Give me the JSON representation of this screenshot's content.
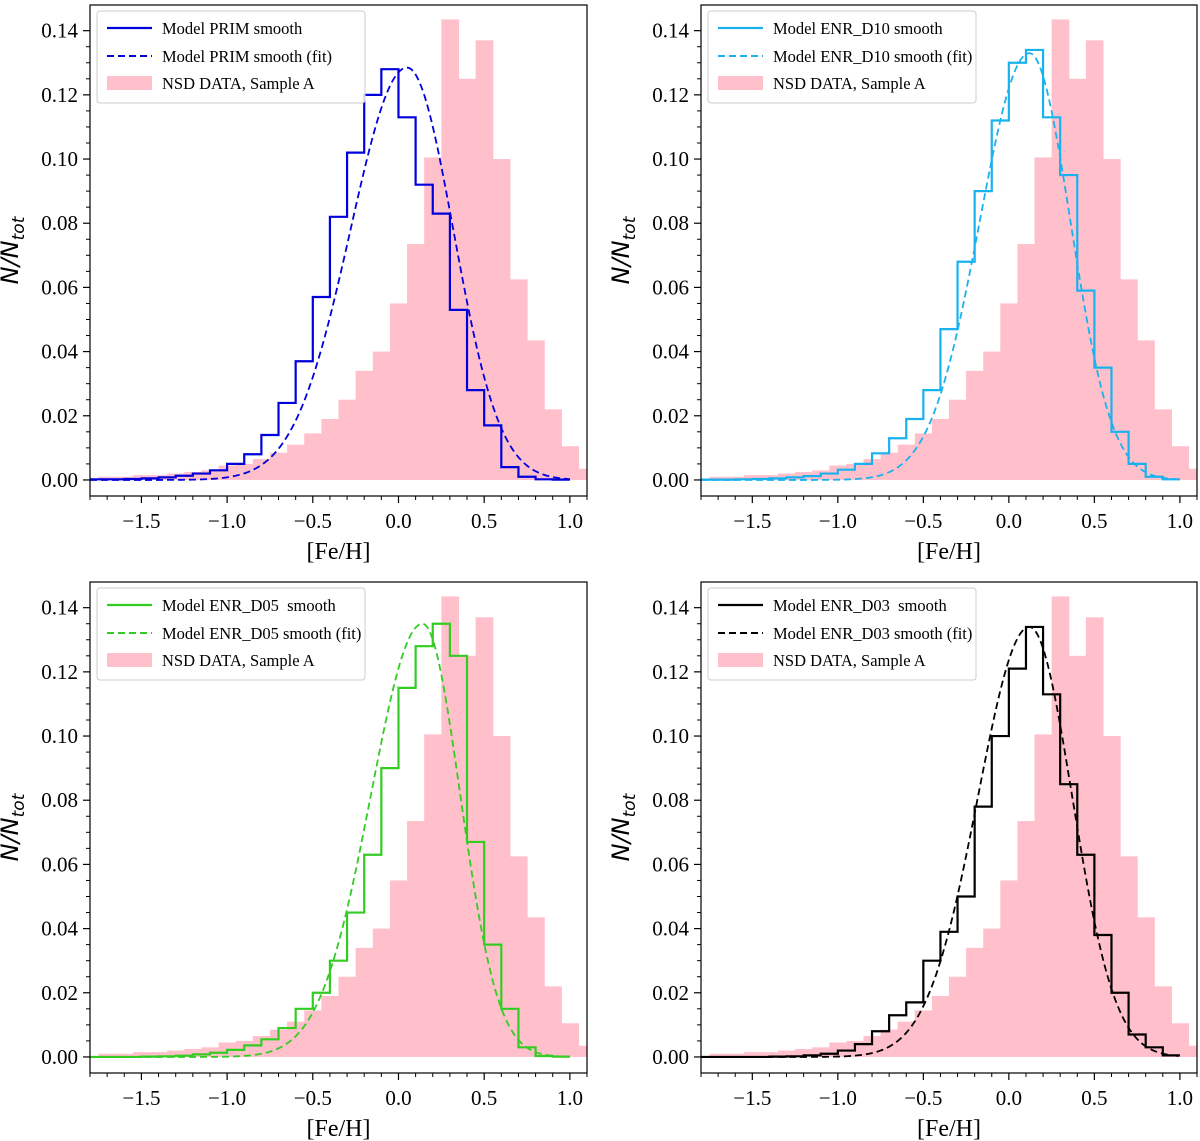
{
  "figure": {
    "xlabel": "[Fe/H]",
    "ylabel_main": "N/N",
    "ylabel_sub": "tot"
  },
  "chart_data": [
    {
      "type": "histogram",
      "title": "",
      "xlabel": "[Fe/H]",
      "ylabel": "N/N_tot",
      "xlim": [
        -1.8,
        1.1
      ],
      "ylim": [
        -0.005,
        0.148
      ],
      "xticks": [
        -1.5,
        -1.0,
        -0.5,
        0.0,
        0.5,
        1.0
      ],
      "xtick_labels": [
        "−1.5",
        "−1.0",
        "−0.5",
        "0.0",
        "0.5",
        "1.0"
      ],
      "yticks": [
        0.0,
        0.02,
        0.04,
        0.06,
        0.08,
        0.1,
        0.12,
        0.14
      ],
      "ytick_labels": [
        "0.00",
        "0.02",
        "0.04",
        "0.06",
        "0.08",
        "0.10",
        "0.12",
        "0.14"
      ],
      "color": "#0000dd",
      "legend": {
        "position": "top-left",
        "entries": [
          "Model PRIM smooth",
          "Model PRIM smooth (fit)",
          "NSD DATA, Sample A"
        ]
      },
      "data_hist": {
        "name": "NSD DATA, Sample A",
        "color": "#ffc0cb",
        "bin_width": 0.1,
        "bin_edges_start": -1.85,
        "values": [
          0.0,
          0.001,
          0.001,
          0.0015,
          0.0015,
          0.002,
          0.0025,
          0.003,
          0.0045,
          0.005,
          0.0065,
          0.0085,
          0.011,
          0.0145,
          0.019,
          0.025,
          0.034,
          0.04,
          0.055,
          0.0735,
          0.1005,
          0.1435,
          0.125,
          0.137,
          0.1,
          0.0625,
          0.0435,
          0.022,
          0.0105,
          0.0035
        ]
      },
      "model_hist": {
        "name": "Model PRIM smooth",
        "bin_width": 0.1,
        "bin_edges_start": -1.8,
        "values": [
          0.0002,
          0.0002,
          0.0003,
          0.0005,
          0.0008,
          0.0013,
          0.002,
          0.003,
          0.005,
          0.008,
          0.014,
          0.024,
          0.037,
          0.057,
          0.082,
          0.102,
          0.12,
          0.128,
          0.113,
          0.092,
          0.083,
          0.053,
          0.028,
          0.017,
          0.004,
          0.001,
          0.0002,
          0.0001
        ]
      },
      "fit_curve": {
        "name": "Model PRIM smooth (fit)",
        "type": "skew-gaussian",
        "amplitude": 0.1285,
        "mu": 0.05,
        "sigma_left": 0.33,
        "sigma_right": 0.27,
        "x_end": 1.0
      }
    },
    {
      "type": "histogram",
      "title": "",
      "xlabel": "[Fe/H]",
      "ylabel": "N/N_tot",
      "xlim": [
        -1.8,
        1.1
      ],
      "ylim": [
        -0.005,
        0.148
      ],
      "xticks": [
        -1.5,
        -1.0,
        -0.5,
        0.0,
        0.5,
        1.0
      ],
      "xtick_labels": [
        "−1.5",
        "−1.0",
        "−0.5",
        "0.0",
        "0.5",
        "1.0"
      ],
      "yticks": [
        0.0,
        0.02,
        0.04,
        0.06,
        0.08,
        0.1,
        0.12,
        0.14
      ],
      "ytick_labels": [
        "0.00",
        "0.02",
        "0.04",
        "0.06",
        "0.08",
        "0.10",
        "0.12",
        "0.14"
      ],
      "color": "#1ab2ee",
      "legend": {
        "position": "top-left",
        "entries": [
          "Model ENR_D10 smooth",
          "Model ENR_D10 smooth (fit)",
          "NSD DATA, Sample A"
        ]
      },
      "data_hist": {
        "name": "NSD DATA, Sample A",
        "color": "#ffc0cb",
        "bin_width": 0.1,
        "bin_edges_start": -1.85,
        "values": [
          0.0,
          0.001,
          0.001,
          0.0015,
          0.0015,
          0.002,
          0.0025,
          0.003,
          0.0045,
          0.005,
          0.0065,
          0.0085,
          0.011,
          0.0145,
          0.019,
          0.025,
          0.034,
          0.04,
          0.055,
          0.0735,
          0.1005,
          0.1435,
          0.125,
          0.137,
          0.1,
          0.0625,
          0.0435,
          0.022,
          0.0105,
          0.0035
        ]
      },
      "model_hist": {
        "name": "Model ENR_D10 smooth",
        "bin_width": 0.1,
        "bin_edges_start": -1.8,
        "values": [
          0.0001,
          0.0001,
          0.0002,
          0.0003,
          0.0005,
          0.0008,
          0.0012,
          0.002,
          0.0032,
          0.005,
          0.0083,
          0.013,
          0.019,
          0.028,
          0.047,
          0.068,
          0.09,
          0.112,
          0.13,
          0.134,
          0.113,
          0.095,
          0.059,
          0.035,
          0.015,
          0.005,
          0.001,
          0.0002
        ]
      },
      "fit_curve": {
        "name": "Model ENR_D10 smooth (fit)",
        "type": "skew-gaussian",
        "amplitude": 0.133,
        "mu": 0.12,
        "sigma_left": 0.29,
        "sigma_right": 0.24,
        "x_end": 1.0
      }
    },
    {
      "type": "histogram",
      "title": "",
      "xlabel": "[Fe/H]",
      "ylabel": "N/N_tot",
      "xlim": [
        -1.8,
        1.1
      ],
      "ylim": [
        -0.005,
        0.148
      ],
      "xticks": [
        -1.5,
        -1.0,
        -0.5,
        0.0,
        0.5,
        1.0
      ],
      "xtick_labels": [
        "−1.5",
        "−1.0",
        "−0.5",
        "0.0",
        "0.5",
        "1.0"
      ],
      "yticks": [
        0.0,
        0.02,
        0.04,
        0.06,
        0.08,
        0.1,
        0.12,
        0.14
      ],
      "ytick_labels": [
        "0.00",
        "0.02",
        "0.04",
        "0.06",
        "0.08",
        "0.10",
        "0.12",
        "0.14"
      ],
      "color": "#33cc22",
      "legend": {
        "position": "top-left",
        "entries": [
          "Model ENR_D05  smooth",
          "Model ENR_D05 smooth (fit)",
          "NSD DATA, Sample A"
        ]
      },
      "data_hist": {
        "name": "NSD DATA, Sample A",
        "color": "#ffc0cb",
        "bin_width": 0.1,
        "bin_edges_start": -1.85,
        "values": [
          0.0,
          0.001,
          0.001,
          0.0015,
          0.0015,
          0.002,
          0.0025,
          0.003,
          0.0045,
          0.005,
          0.0065,
          0.0085,
          0.011,
          0.0145,
          0.019,
          0.025,
          0.034,
          0.04,
          0.055,
          0.0735,
          0.1005,
          0.1435,
          0.125,
          0.137,
          0.1,
          0.0625,
          0.0435,
          0.022,
          0.0105,
          0.0035
        ]
      },
      "model_hist": {
        "name": "Model ENR_D05  smooth",
        "bin_width": 0.1,
        "bin_edges_start": -1.8,
        "values": [
          0.0,
          0.0,
          0.0,
          0.0001,
          0.0002,
          0.0004,
          0.0008,
          0.0013,
          0.0022,
          0.0036,
          0.0055,
          0.009,
          0.015,
          0.02,
          0.03,
          0.045,
          0.063,
          0.09,
          0.115,
          0.128,
          0.135,
          0.125,
          0.067,
          0.035,
          0.015,
          0.003,
          0.0003,
          0.0001
        ]
      },
      "fit_curve": {
        "name": "Model ENR_D05 smooth (fit)",
        "type": "skew-gaussian",
        "amplitude": 0.135,
        "mu": 0.14,
        "sigma_left": 0.3,
        "sigma_right": 0.22,
        "x_end": 1.0
      }
    },
    {
      "type": "histogram",
      "title": "",
      "xlabel": "[Fe/H]",
      "ylabel": "N/N_tot",
      "xlim": [
        -1.8,
        1.1
      ],
      "ylim": [
        -0.005,
        0.148
      ],
      "xticks": [
        -1.5,
        -1.0,
        -0.5,
        0.0,
        0.5,
        1.0
      ],
      "xtick_labels": [
        "−1.5",
        "−1.0",
        "−0.5",
        "0.0",
        "0.5",
        "1.0"
      ],
      "yticks": [
        0.0,
        0.02,
        0.04,
        0.06,
        0.08,
        0.1,
        0.12,
        0.14
      ],
      "ytick_labels": [
        "0.00",
        "0.02",
        "0.04",
        "0.06",
        "0.08",
        "0.10",
        "0.12",
        "0.14"
      ],
      "color": "#000000",
      "legend": {
        "position": "top-left",
        "entries": [
          "Model ENR_D03  smooth",
          "Model ENR_D03 smooth (fit)",
          "NSD DATA, Sample A"
        ]
      },
      "data_hist": {
        "name": "NSD DATA, Sample A",
        "color": "#ffc0cb",
        "bin_width": 0.1,
        "bin_edges_start": -1.85,
        "values": [
          0.0,
          0.001,
          0.001,
          0.0015,
          0.0015,
          0.002,
          0.0025,
          0.003,
          0.0045,
          0.005,
          0.0065,
          0.0085,
          0.011,
          0.0145,
          0.019,
          0.025,
          0.034,
          0.04,
          0.055,
          0.0735,
          0.1005,
          0.1435,
          0.125,
          0.137,
          0.1,
          0.0625,
          0.0435,
          0.022,
          0.0105,
          0.0035
        ]
      },
      "model_hist": {
        "name": "Model ENR_D03  smooth",
        "bin_width": 0.1,
        "bin_edges_start": -1.8,
        "values": [
          0.0,
          0.0,
          0.0,
          0.0,
          0.0001,
          0.0002,
          0.0005,
          0.001,
          0.002,
          0.004,
          0.008,
          0.013,
          0.017,
          0.03,
          0.039,
          0.05,
          0.078,
          0.1,
          0.121,
          0.134,
          0.113,
          0.085,
          0.063,
          0.038,
          0.02,
          0.007,
          0.003,
          0.0005
        ]
      },
      "fit_curve": {
        "name": "Model ENR_D03 smooth (fit)",
        "type": "skew-gaussian",
        "amplitude": 0.134,
        "mu": 0.12,
        "sigma_left": 0.3,
        "sigma_right": 0.25,
        "x_end": 1.0
      }
    }
  ]
}
